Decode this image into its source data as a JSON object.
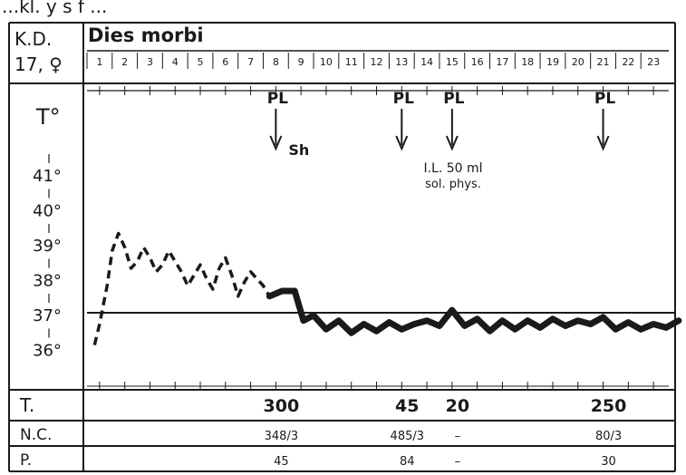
{
  "header": {
    "fragment": "...kl. y s f ...",
    "patient_code": "K.D.",
    "patient_sex_age": "17, ♀",
    "title": "Dies morbi"
  },
  "days": [
    "1",
    "2",
    "3",
    "4",
    "5",
    "6",
    "7",
    "8",
    "9",
    "10",
    "11",
    "12",
    "13",
    "14",
    "15",
    "16",
    "17",
    "18",
    "19",
    "20",
    "21",
    "22",
    "23"
  ],
  "y_axis": {
    "title": "T°",
    "ticks": [
      {
        "label": "41°",
        "value": 41
      },
      {
        "label": "40°",
        "value": 40
      },
      {
        "label": "39°",
        "value": 39
      },
      {
        "label": "38°",
        "value": 38
      },
      {
        "label": "37°",
        "value": 37
      },
      {
        "label": "36°",
        "value": 36
      }
    ]
  },
  "interventions": [
    {
      "day": 8,
      "label": "PL",
      "note": "Sh"
    },
    {
      "day": 13,
      "label": "PL",
      "note": ""
    },
    {
      "day": 15,
      "label": "PL",
      "note": "I.L. 50 ml sol. phys."
    },
    {
      "day": 21,
      "label": "PL",
      "note": ""
    }
  ],
  "note_line1": "I.L. 50 ml",
  "note_line2": "sol. phys.",
  "rows": {
    "t": {
      "label": "T.",
      "values": [
        {
          "day": 8,
          "text": "300"
        },
        {
          "day": 13,
          "text": "45"
        },
        {
          "day": 15,
          "text": "20"
        },
        {
          "day": 21,
          "text": "250"
        }
      ]
    },
    "nc": {
      "label": "N.C.",
      "values": [
        {
          "day": 8,
          "text": "348/3"
        },
        {
          "day": 13,
          "text": "485/3"
        },
        {
          "day": 15,
          "text": "–"
        },
        {
          "day": 21,
          "text": "80/3"
        }
      ]
    },
    "p": {
      "label": "P.",
      "values": [
        {
          "day": 8,
          "text": "45"
        },
        {
          "day": 13,
          "text": "84"
        },
        {
          "day": 15,
          "text": "–"
        },
        {
          "day": 21,
          "text": "30"
        }
      ]
    }
  },
  "chart_data": {
    "type": "line",
    "title": "Dies morbi",
    "xlabel": "Dies morbi",
    "ylabel": "T°",
    "ylim": [
      35.5,
      42
    ],
    "series": [
      {
        "style": "dashed",
        "points": [
          [
            0.3,
            36.1
          ],
          [
            0.5,
            36.7
          ],
          [
            0.8,
            37.8
          ],
          [
            1.0,
            38.8
          ],
          [
            1.25,
            39.3
          ],
          [
            1.5,
            38.9
          ],
          [
            1.75,
            38.3
          ],
          [
            2.0,
            38.5
          ],
          [
            2.25,
            38.9
          ],
          [
            2.5,
            38.6
          ],
          [
            2.75,
            38.2
          ],
          [
            3.0,
            38.4
          ],
          [
            3.25,
            38.8
          ],
          [
            3.5,
            38.5
          ],
          [
            3.75,
            38.2
          ],
          [
            4.0,
            37.8
          ],
          [
            4.25,
            38.1
          ],
          [
            4.5,
            38.4
          ],
          [
            4.75,
            38.0
          ],
          [
            5.0,
            37.7
          ],
          [
            5.25,
            38.3
          ],
          [
            5.5,
            38.6
          ],
          [
            5.75,
            38.1
          ],
          [
            6.0,
            37.5
          ],
          [
            6.25,
            37.9
          ],
          [
            6.5,
            38.2
          ],
          [
            6.75,
            38.0
          ],
          [
            7.0,
            37.8
          ],
          [
            7.25,
            37.5
          ]
        ]
      },
      {
        "style": "solid-thick",
        "points": [
          [
            7.25,
            37.5
          ],
          [
            7.75,
            37.65
          ],
          [
            8.25,
            37.65
          ],
          [
            8.6,
            36.8
          ],
          [
            9.0,
            36.95
          ],
          [
            9.5,
            36.55
          ],
          [
            10.0,
            36.8
          ],
          [
            10.5,
            36.45
          ],
          [
            11.0,
            36.7
          ],
          [
            11.5,
            36.5
          ],
          [
            12.0,
            36.75
          ],
          [
            12.5,
            36.55
          ],
          [
            13.0,
            36.7
          ],
          [
            13.5,
            36.8
          ],
          [
            14.0,
            36.65
          ],
          [
            14.5,
            37.1
          ],
          [
            15.0,
            36.65
          ],
          [
            15.5,
            36.85
          ],
          [
            16.0,
            36.5
          ],
          [
            16.5,
            36.8
          ],
          [
            17.0,
            36.55
          ],
          [
            17.5,
            36.8
          ],
          [
            18.0,
            36.6
          ],
          [
            18.5,
            36.85
          ],
          [
            19.0,
            36.65
          ],
          [
            19.5,
            36.8
          ],
          [
            20.0,
            36.7
          ],
          [
            20.5,
            36.9
          ],
          [
            21.0,
            36.55
          ],
          [
            21.5,
            36.75
          ],
          [
            22.0,
            36.55
          ],
          [
            22.5,
            36.7
          ],
          [
            23.0,
            36.6
          ],
          [
            23.5,
            36.8
          ]
        ]
      }
    ],
    "reference_line": 37,
    "grid": false,
    "legend": "none"
  }
}
